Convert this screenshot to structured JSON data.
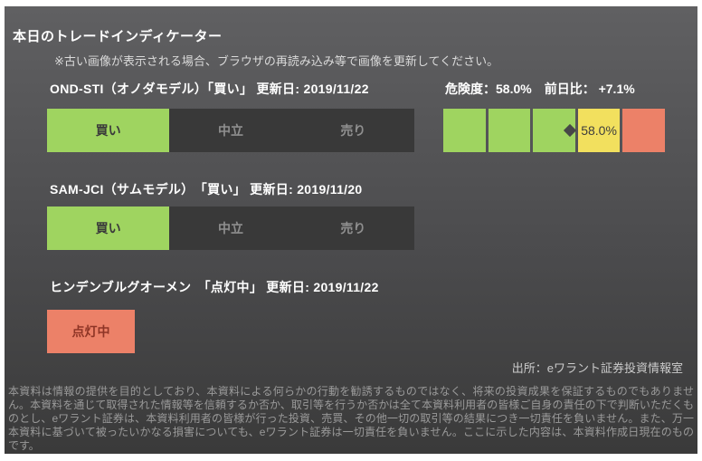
{
  "header": {
    "title": "本日のトレードインディケーター",
    "notice": "※古い画像が表示される場合、ブラウザの再読み込み等で画像を更新してください。"
  },
  "models": [
    {
      "header": "OND-STI（オノダモデル）「買い」 更新日: 2019/11/22",
      "options": [
        "買い",
        "中立",
        "売り"
      ],
      "active_option": "買い"
    },
    {
      "header": "SAM-JCI（サムモデル）　「買い」 更新日: 2019/11/20",
      "options": [
        "買い",
        "中立",
        "売り"
      ],
      "active_option": "買い"
    }
  ],
  "hindenburg": {
    "header": "ヒンデンブルグオーメン　「点灯中」 更新日: 2019/11/22",
    "status": "点灯中"
  },
  "risk_gauge": {
    "risk_text": "危険度：58.0%",
    "change_text": "前日比： +7.1%",
    "value_pct": 58.0,
    "change_pct": 7.1,
    "value_label": "58.0%",
    "segment_colors": [
      "green",
      "green",
      "green",
      "yellow",
      "red"
    ],
    "marker_shape": "diamond",
    "marker_position_pct": 58.0
  },
  "footer": {
    "source": "出所：eワラント証券投資情報室",
    "disclaimer": "本資料は情報の提供を目的としており、本資料による何らかの行動を勧誘するものではなく、将来の投資成果を保証するものでもありません。本資料を通じて取得された情報等を信頼するか否か、取引等を行うか否かは全て本資料利用者の皆様ご自身の責任の下で判断いただくものとし、eワラント証券は、本資料利用者の皆様が行った投資、売買、その他一切の取引等の結果につき一切責任を負いません。また、万一本資料に基づいて被ったいかなる損害についても、eワラント証券は一切責任を負いません。ここに示した内容は、本資料作成日現在のものです。"
  },
  "colors": {
    "buy_green": "#9fd460",
    "warn_yellow": "#f2e05e",
    "alert_red": "#ec8168",
    "inactive_bg": "#393939",
    "panel_top": "#606062",
    "panel_bottom": "#3a3a3a"
  }
}
